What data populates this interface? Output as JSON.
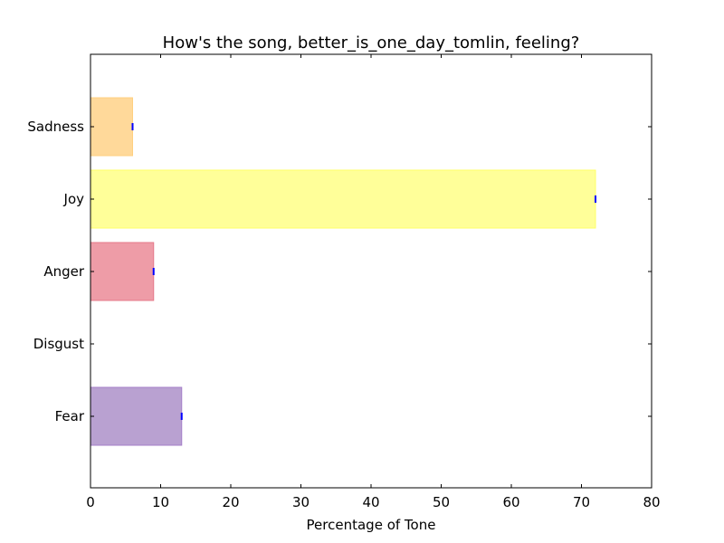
{
  "chart_data": {
    "type": "bar",
    "orientation": "horizontal",
    "title": "How's the song, better_is_one_day_tomlin, feeling?",
    "xlabel": "Percentage of Tone",
    "ylabel": "",
    "xlim": [
      0,
      80
    ],
    "xticks": [
      "0",
      "10",
      "20",
      "30",
      "40",
      "50",
      "60",
      "70",
      "80"
    ],
    "grid": false,
    "categories": [
      "Fear",
      "Disgust",
      "Anger",
      "Joy",
      "Sadness"
    ],
    "values": [
      13,
      0,
      9,
      72,
      6
    ],
    "colors": [
      "#b9a1d1",
      "#9fe3a8",
      "#ee9ca7",
      "#ffff99",
      "#ffd99a"
    ],
    "edge_colors": [
      "#a57fc9",
      "#6bcf79",
      "#e57a8a",
      "#ffff66",
      "#ffd080"
    ],
    "error_marker_color": "#0000ff"
  }
}
